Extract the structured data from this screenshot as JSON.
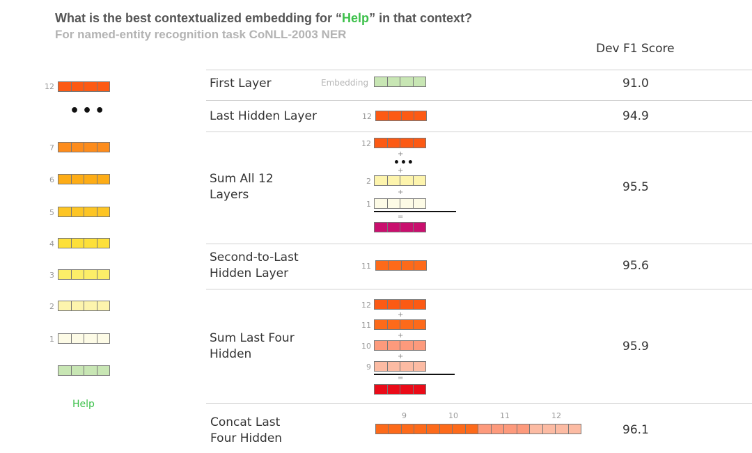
{
  "header": {
    "title_before": "What is the best contextualized embedding for “",
    "title_highlight": "Help",
    "title_after": "” in that context?",
    "subtitle": "For named-entity recognition task CoNLL-2003 NER",
    "score_column": "Dev F1 Score"
  },
  "colors": {
    "highlight": "#3cc04a",
    "embedding": "#c8e6b4",
    "layer_12": "#fc5a14",
    "layer_11": "#fd6a1a",
    "layer_10": "#fd9a7c",
    "layer_9": "#fcbba3",
    "layer_7": "#fd8c1c",
    "layer_6": "#fdac16",
    "layer_5": "#fdc524",
    "layer_4": "#fde03a",
    "layer_3": "#fcee68",
    "layer_2": "#fdf4ad",
    "layer_1": "#fdfbe6",
    "sum_all": "#c90f6e",
    "sum_four": "#ea0b18"
  },
  "stack": {
    "layers": [
      {
        "num": "12"
      },
      {
        "num": "7"
      },
      {
        "num": "6"
      },
      {
        "num": "5"
      },
      {
        "num": "4"
      },
      {
        "num": "3"
      },
      {
        "num": "2"
      },
      {
        "num": "1"
      }
    ],
    "word": "Help"
  },
  "rows": [
    {
      "label": "First Layer",
      "score": "91.0",
      "vectors": [
        {
          "tag": "Embedding"
        }
      ]
    },
    {
      "label": "Last Hidden Layer",
      "score": "94.9",
      "vectors": [
        {
          "tag": "12"
        }
      ]
    },
    {
      "label": "Sum All 12 Layers",
      "score": "95.5",
      "vectors": [
        {
          "tag": "12"
        },
        {
          "tag": "2"
        },
        {
          "tag": "1"
        }
      ],
      "operators": [
        "+",
        "+",
        "+",
        "="
      ]
    },
    {
      "label": "Second-to-Last Hidden Layer",
      "score": "95.6",
      "vectors": [
        {
          "tag": "11"
        }
      ]
    },
    {
      "label": "Sum Last Four Hidden",
      "score": "95.9",
      "vectors": [
        {
          "tag": "12"
        },
        {
          "tag": "11"
        },
        {
          "tag": "10"
        },
        {
          "tag": "9"
        }
      ],
      "operators": [
        "+",
        "+",
        "+",
        "="
      ]
    },
    {
      "label": "Concat Last Four Hidden",
      "score": "96.1",
      "vectors": [
        {
          "tag": "9"
        },
        {
          "tag": "10"
        },
        {
          "tag": "11"
        },
        {
          "tag": "12"
        }
      ]
    }
  ]
}
